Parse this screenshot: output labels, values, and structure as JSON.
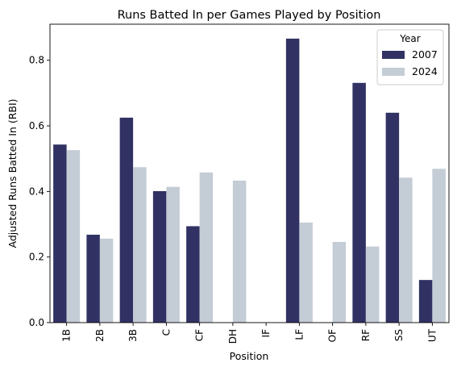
{
  "chart_data": {
    "type": "bar",
    "title": "Runs Batted In per Games Played by Position",
    "xlabel": "Position",
    "ylabel": "Adjusted Runs Batted In (RBI)",
    "categories": [
      "1B",
      "2B",
      "3B",
      "C",
      "CF",
      "DH",
      "IF",
      "LF",
      "OF",
      "RF",
      "SS",
      "UT"
    ],
    "series": [
      {
        "name": "2007",
        "color": "#313263",
        "values": [
          0.543,
          0.268,
          0.625,
          0.401,
          0.294,
          null,
          null,
          0.866,
          null,
          0.731,
          0.64,
          0.13
        ]
      },
      {
        "name": "2024",
        "color": "#c4ccd5",
        "values": [
          0.526,
          0.256,
          0.474,
          0.414,
          0.458,
          0.433,
          null,
          0.305,
          0.246,
          0.232,
          0.442,
          0.469
        ]
      }
    ],
    "ylim": [
      0,
      0.91
    ],
    "yticks": [
      "0.0",
      "0.2",
      "0.4",
      "0.6",
      "0.8"
    ],
    "legend": {
      "title": "Year",
      "position": "top-right"
    },
    "grid": false
  }
}
